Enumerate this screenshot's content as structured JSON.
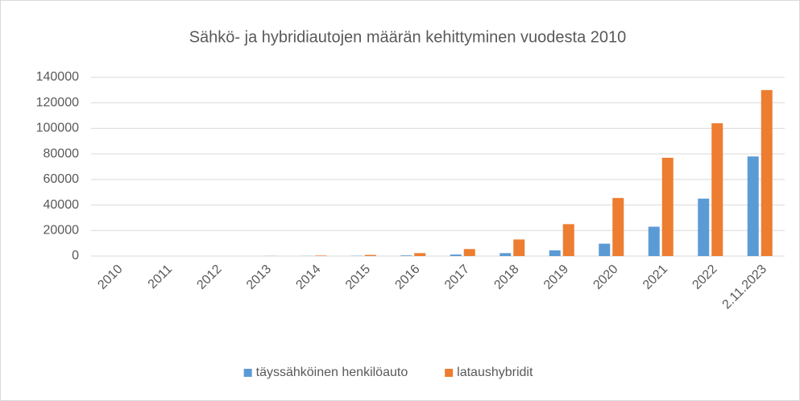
{
  "chart_data": {
    "type": "bar",
    "title": "Sähkö- ja hybridiautojen määrän kehittyminen vuodesta 2010",
    "categories": [
      "2010",
      "2011",
      "2012",
      "2013",
      "2014",
      "2015",
      "2016",
      "2017",
      "2018",
      "2019",
      "2020",
      "2021",
      "2022",
      "2.11.2023"
    ],
    "series": [
      {
        "name": "täyssähköinen henkilöauto",
        "color": "#5b9bd5",
        "values": [
          0,
          0,
          0,
          0,
          100,
          200,
          500,
          1200,
          2300,
          4500,
          9700,
          23000,
          45000,
          78000
        ]
      },
      {
        "name": "lataushybridit",
        "color": "#ed7d31",
        "values": [
          0,
          0,
          0,
          100,
          400,
          900,
          2300,
          5500,
          13000,
          25000,
          45500,
          77000,
          104000,
          130000
        ]
      }
    ],
    "ylim": [
      0,
      140000
    ],
    "yticks": [
      0,
      20000,
      40000,
      60000,
      80000,
      100000,
      120000,
      140000
    ],
    "grid": true,
    "legend": "bottom"
  }
}
